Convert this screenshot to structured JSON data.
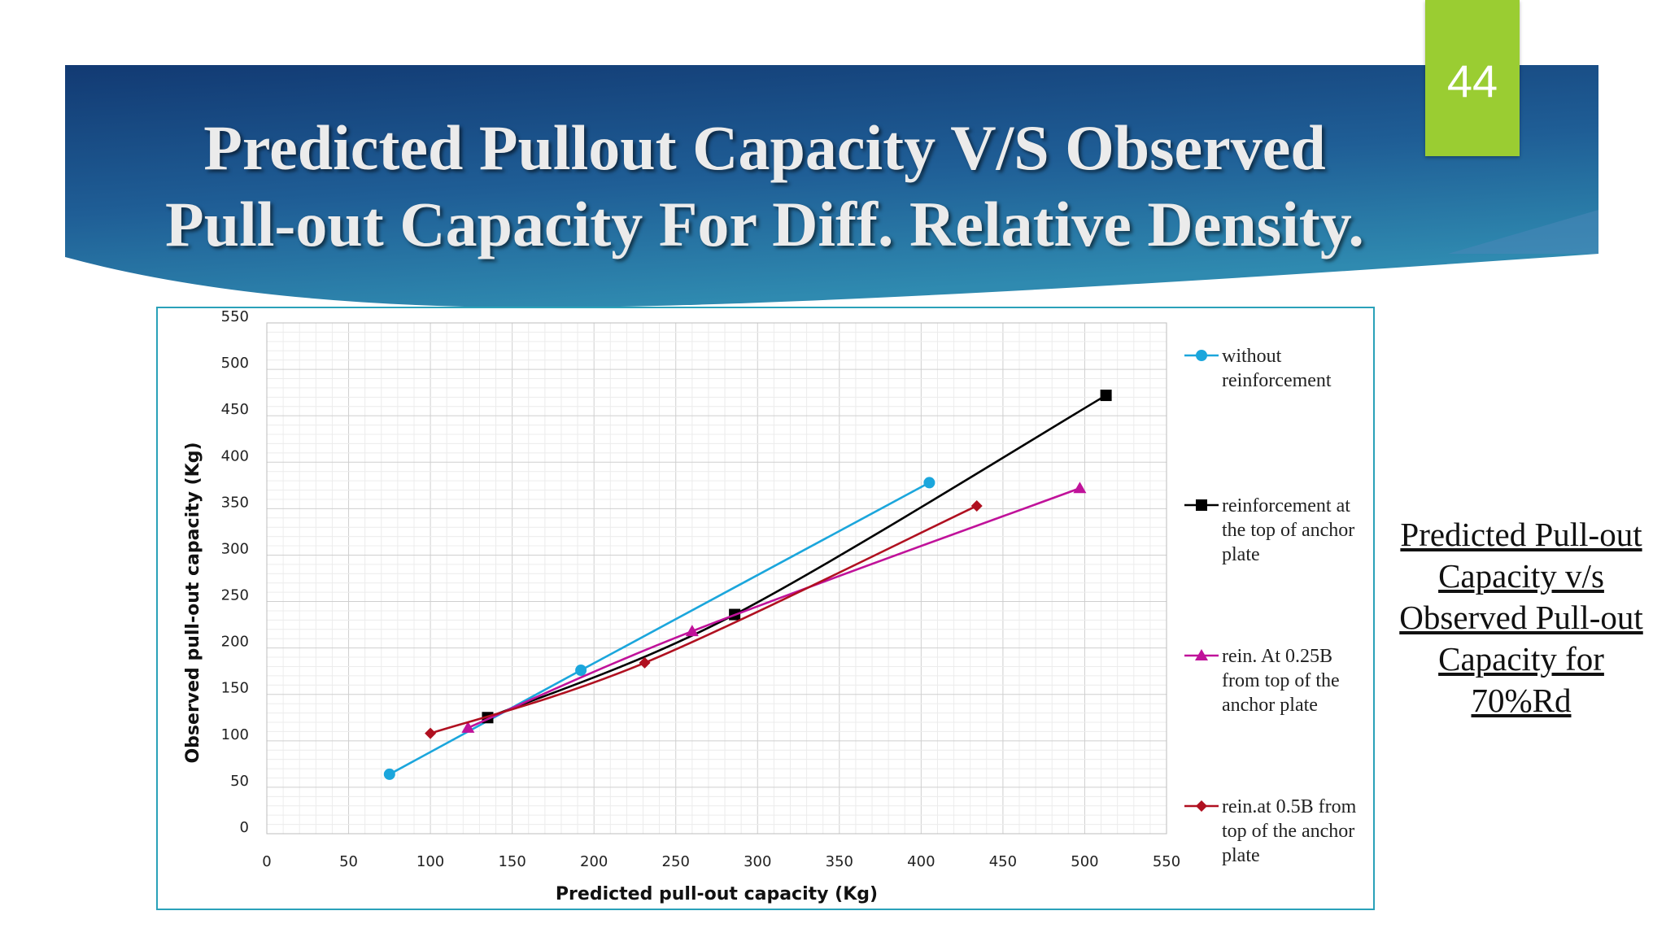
{
  "slide": {
    "title_line1": "Predicted Pullout Capacity V/S Observed",
    "title_line2": "Pull-out Capacity For Diff. Relative Density.",
    "page_number": "44",
    "side_caption": [
      "Predicted Pull-out",
      "Capacity v/s",
      "Observed Pull-out",
      "Capacity for",
      "70%Rd"
    ],
    "colors": {
      "banner_dark": "#123a73",
      "banner_light": "#2f8ab0",
      "badge": "#9acd32",
      "chart_border": "#2aa1b9"
    }
  },
  "chart_data": {
    "type": "line",
    "xlabel": "Predicted pull-out capacity (Kg)",
    "ylabel": "Observed  pull-out capacity (Kg)",
    "xlim": [
      0,
      550
    ],
    "ylim": [
      0,
      550
    ],
    "x_ticks": [
      "0",
      "50",
      "100",
      "150",
      "200",
      "250",
      "300",
      "350",
      "400",
      "450",
      "500",
      "550"
    ],
    "y_ticks": [
      "0",
      "50",
      "100",
      "150",
      "200",
      "250",
      "300",
      "350",
      "400",
      "450",
      "500",
      "550"
    ],
    "grid": true,
    "legend_position": "right",
    "series": [
      {
        "name": [
          "without",
          "reinforcement"
        ],
        "color": "#1ba6dc",
        "marker": "circle",
        "points": [
          [
            75,
            64
          ],
          [
            192,
            176
          ],
          [
            405,
            378
          ]
        ]
      },
      {
        "name": [
          "reinforcement at",
          "the top of anchor",
          "plate"
        ],
        "color": "#000000",
        "marker": "square",
        "points": [
          [
            135,
            125
          ],
          [
            286,
            236
          ],
          [
            513,
            472
          ]
        ]
      },
      {
        "name": [
          "rein. At 0.25B",
          "from top of the",
          "anchor plate"
        ],
        "color": "#c0129a",
        "marker": "triangle",
        "points": [
          [
            123,
            114
          ],
          [
            260,
            218
          ],
          [
            497,
            372
          ]
        ]
      },
      {
        "name": [
          "rein.at 0.5B from",
          "top of the anchor",
          "plate"
        ],
        "color": "#b01020",
        "marker": "diamond",
        "points": [
          [
            100,
            108
          ],
          [
            231,
            184
          ],
          [
            434,
            353
          ]
        ]
      }
    ]
  }
}
